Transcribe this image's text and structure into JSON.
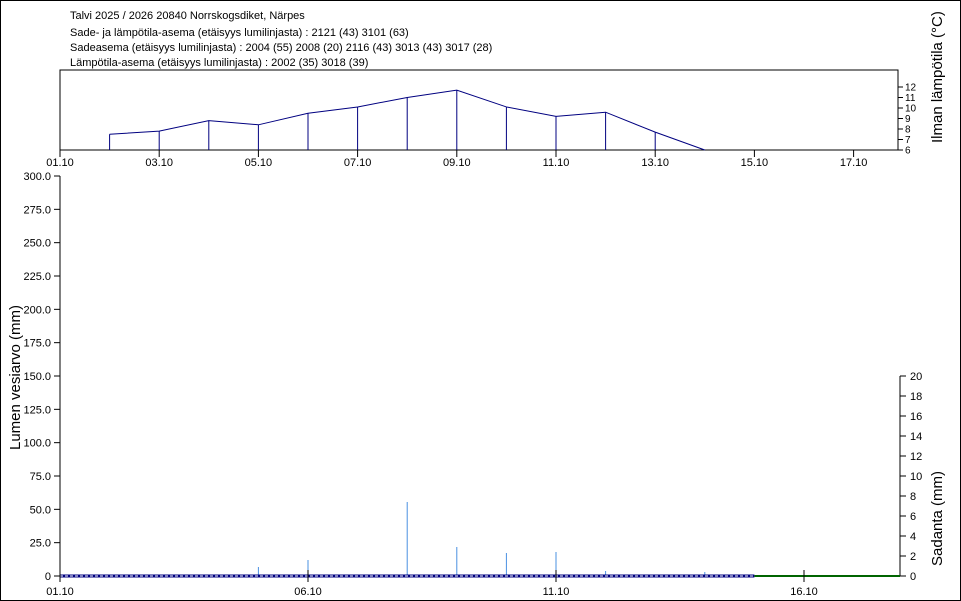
{
  "header": {
    "title": "Talvi 2025 / 2026 20840 Norrskogsdiket, Närpes",
    "line2": "Sade- ja lämpötila-asema (etäisyys lumilinjasta) :  2121 (43) 3101 (63)",
    "line3": "Sadeasema (etäisyys lumilinjasta) :  2004 (55) 2008 (20) 2116 (43) 3013 (43) 3017 (28)",
    "line4": "Lämpötila-asema (etäisyys lumilinjasta) :  2002 (35) 3018 (39)"
  },
  "chart_data": [
    {
      "type": "line",
      "ylabel": "Ilman lämpötila (°C)",
      "ylim": [
        6,
        12
      ],
      "yticks": [
        "6",
        "7",
        "8",
        "9",
        "10",
        "11",
        "12"
      ],
      "xticks": [
        "01.10",
        "03.10",
        "05.10",
        "07.10",
        "09.10",
        "11.10",
        "13.10",
        "15.10",
        "17.10"
      ],
      "xlim": [
        "01.10",
        "17.10"
      ],
      "color": "#000080",
      "x": [
        "02.10",
        "03.10",
        "04.10",
        "05.10",
        "06.10",
        "07.10",
        "08.10",
        "09.10",
        "10.10",
        "11.10",
        "12.10",
        "13.10",
        "14.10"
      ],
      "values": [
        7.5,
        7.8,
        8.8,
        8.4,
        9.5,
        10.1,
        11.0,
        11.7,
        10.1,
        9.2,
        9.6,
        7.7,
        6.0
      ]
    },
    {
      "type": "bar",
      "ylabel": "Lumen vesiarvo (mm)",
      "ylim": [
        0,
        300
      ],
      "yticks": [
        "0",
        "25.0",
        "50.0",
        "75.0",
        "100.0",
        "125.0",
        "150.0",
        "175.0",
        "200.0",
        "225.0",
        "250.0",
        "275.0",
        "300.0"
      ],
      "y2label": "Sadanta (mm)",
      "y2lim": [
        0,
        20
      ],
      "y2ticks": [
        "0",
        "2",
        "4",
        "6",
        "8",
        "10",
        "12",
        "14",
        "16",
        "18",
        "20"
      ],
      "xticks": [
        "01.10",
        "06.10",
        "11.10",
        "16.10"
      ],
      "top_xlabel": "01.10",
      "precip_color": "#4a90e2",
      "precipitation": {
        "x": [
          "05.10",
          "06.10",
          "07.10",
          "08.10",
          "09.10",
          "10.10",
          "11.10",
          "12.10",
          "13.10",
          "14.10"
        ],
        "values": [
          0.9,
          1.6,
          0.1,
          7.4,
          2.9,
          2.3,
          2.4,
          0.5,
          0.1,
          0.4
        ]
      },
      "snow_water": {
        "color": "#000080",
        "from": "01.10",
        "to": "15.10",
        "value": 0
      },
      "snow_forecast": {
        "color": "#006400",
        "from": "15.10",
        "to": "17.10",
        "value": 0
      }
    }
  ]
}
